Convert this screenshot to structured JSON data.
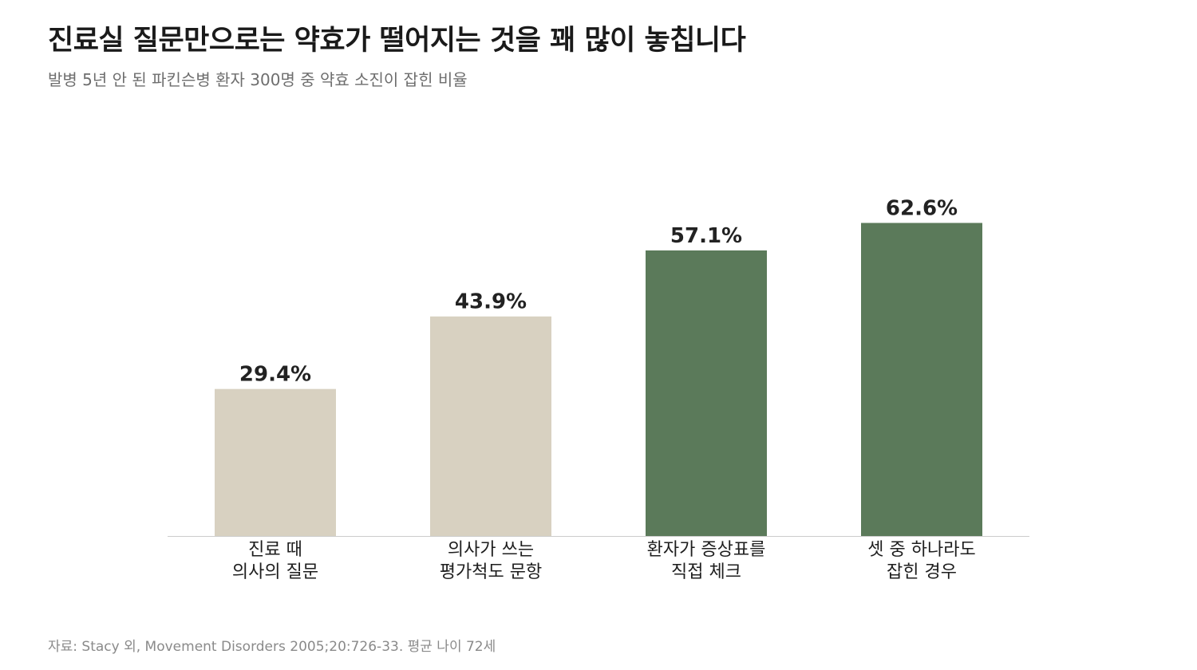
{
  "title": "진료실 질문만으로는 약효가 떨어지는 것을 꽤 많이 놓칩니다",
  "subtitle": "발병 5년 안 된 파킨슨병 환자 300명 중 약효 소진이 잡힌 비율",
  "source": "자료: Stacy 외, Movement Disorders 2005;20:726-33. 평균 나이 72세",
  "colors": {
    "muted": "#d8d1c1",
    "accent": "#5b7a5a",
    "axis": "#cccccc"
  },
  "chart_data": {
    "type": "bar",
    "categories": [
      [
        "진료 때",
        "의사의 질문"
      ],
      [
        "의사가 쓰는",
        "평가척도 문항"
      ],
      [
        "환자가 증상표를",
        "직접 체크"
      ],
      [
        "셋 중 하나라도",
        "잡힌 경우"
      ]
    ],
    "values": [
      29.4,
      43.9,
      57.1,
      62.6
    ],
    "value_labels": [
      "29.4%",
      "43.9%",
      "57.1%",
      "62.6%"
    ],
    "bar_colors": [
      "#d8d1c1",
      "#d8d1c1",
      "#5b7a5a",
      "#5b7a5a"
    ],
    "ylim": [
      0,
      70
    ],
    "grid": false,
    "legend": "none"
  }
}
